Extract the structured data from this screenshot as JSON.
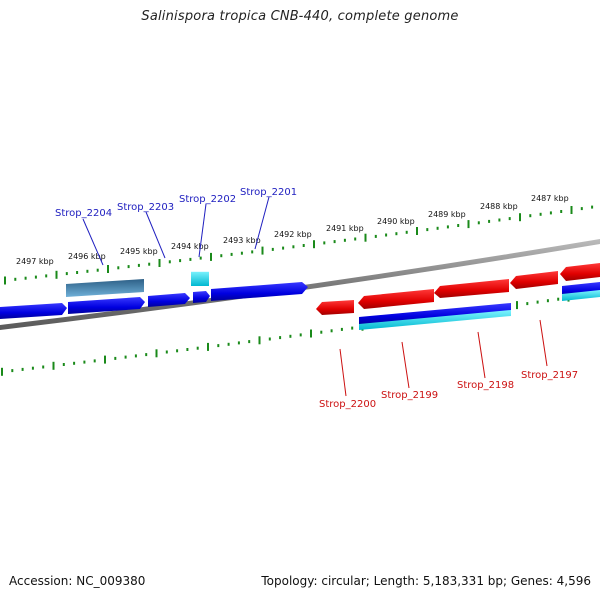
{
  "title": "Salinispora tropica CNB-440, complete genome",
  "footer": {
    "accession": "Accession: NC_009380",
    "summary": "Topology: circular; Length: 5,183,331 bp; Genes: 4,596"
  },
  "colors": {
    "forward_gene": "#0000ee",
    "reverse_gene": "#ee0000",
    "rna_feature": "#00c8d8",
    "pseudogene": "#4a8fb5",
    "backbone": "#777777",
    "tick": "#1a8a1a",
    "forward_label": "#2020c0",
    "reverse_label": "#cc1111"
  },
  "kbp_labels": [
    "2497 kbp",
    "2496 kbp",
    "2495 kbp",
    "2494 kbp",
    "2493 kbp",
    "2492 kbp",
    "2491 kbp",
    "2490 kbp",
    "2489 kbp",
    "2488 kbp",
    "2487 kbp"
  ],
  "forward_genes": [
    {
      "label": "Strop_2204"
    },
    {
      "label": "Strop_2203"
    },
    {
      "label": "Strop_2202"
    },
    {
      "label": "Strop_2201"
    }
  ],
  "reverse_genes": [
    {
      "label": "Strop_2200"
    },
    {
      "label": "Strop_2199"
    },
    {
      "label": "Strop_2198"
    },
    {
      "label": "Strop_2197"
    }
  ]
}
